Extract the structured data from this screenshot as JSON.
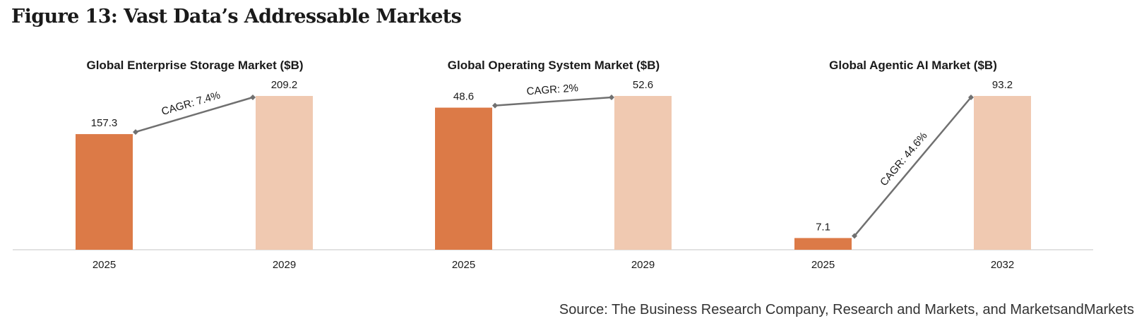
{
  "figure_title": "Figure 13: Vast Data’s Addressable Markets",
  "source": "Source: The Business Research Company, Research and Markets, and MarketsandMarkets",
  "colors": {
    "bar_start": "#dc7a47",
    "bar_end": "#f0c9b1",
    "connector": "#707070",
    "baseline": "#d9d9d9",
    "text": "#1a1a1a"
  },
  "chart_data": [
    {
      "type": "bar",
      "title": "Global Enterprise Storage Market ($B)",
      "categories": [
        "2025",
        "2029"
      ],
      "values": [
        157.3,
        209.2
      ],
      "value_labels": [
        "157.3",
        "209.2"
      ],
      "cagr_label": "CAGR: 7.4%",
      "ylim": [
        0,
        209.2
      ],
      "ylabel": "",
      "xlabel": ""
    },
    {
      "type": "bar",
      "title": "Global Operating System Market ($B)",
      "categories": [
        "2025",
        "2029"
      ],
      "values": [
        48.6,
        52.6
      ],
      "value_labels": [
        "48.6",
        "52.6"
      ],
      "cagr_label": "CAGR: 2%",
      "ylim": [
        0,
        52.6
      ],
      "ylabel": "",
      "xlabel": ""
    },
    {
      "type": "bar",
      "title": "Global Agentic AI Market ($B)",
      "categories": [
        "2025",
        "2032"
      ],
      "values": [
        7.1,
        93.2
      ],
      "value_labels": [
        "7.1",
        "93.2"
      ],
      "cagr_label": "CAGR: 44.6%",
      "ylim": [
        0,
        93.2
      ],
      "ylabel": "",
      "xlabel": ""
    }
  ]
}
